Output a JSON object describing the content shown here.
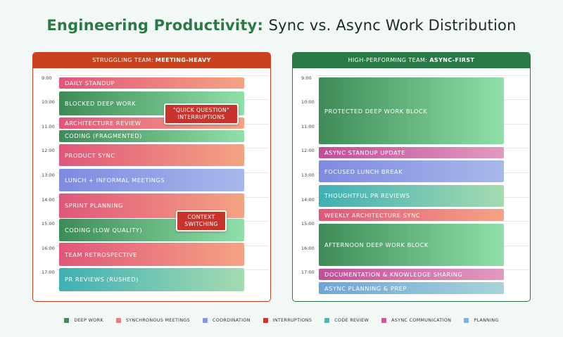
{
  "title": {
    "part1": "Engineering Productivity:",
    "part2": "Sync vs. Async Work Distribution"
  },
  "hours": [
    "9:00",
    "10:00",
    "11:00",
    "12:00",
    "13:00",
    "14:00",
    "15:00",
    "16:00",
    "17:00"
  ],
  "left_panel": {
    "header_prefix": "STRUGGLING TEAM:",
    "header_bold": "MEETING-HEAVY",
    "blocks": [
      {
        "label": "DAILY STANDUP",
        "category": "sync",
        "start": 9.1,
        "end": 9.55
      },
      {
        "label": "BLOCKED DEEP WORK",
        "category": "deep",
        "start": 9.67,
        "end": 10.67
      },
      {
        "label": "ARCHITECTURE REVIEW",
        "category": "sync",
        "start": 10.74,
        "end": 11.2
      },
      {
        "label": "CODING (FRAGMENTED)",
        "category": "deep",
        "start": 11.27,
        "end": 11.75
      },
      {
        "label": "PRODUCT SYNC",
        "category": "sync",
        "start": 11.85,
        "end": 12.75
      },
      {
        "label": "LUNCH + INFORMAL MEETINGS",
        "category": "coord",
        "start": 12.85,
        "end": 13.77
      },
      {
        "label": "SPRINT PLANNING",
        "category": "sync",
        "start": 13.87,
        "end": 14.87
      },
      {
        "label": "CODING (LOW QUALITY)",
        "category": "deep",
        "start": 14.9,
        "end": 15.85
      },
      {
        "label": "TEAM RETROSPECTIVE",
        "category": "sync",
        "start": 15.9,
        "end": 16.85
      },
      {
        "label": "PR REVIEWS (RUSHED)",
        "category": "review",
        "start": 16.93,
        "end": 17.88
      }
    ],
    "callouts": [
      {
        "line1": "\"QUICK QUESTION\"",
        "line2": "INTERRUPTIONS"
      },
      {
        "line1": "CONTEXT",
        "line2": "SWITCHING"
      }
    ]
  },
  "right_panel": {
    "header_prefix": "HIGH-PERFORMING TEAM:",
    "header_bold": "ASYNC-FIRST",
    "blocks": [
      {
        "label": "PROTECTED DEEP WORK BLOCK",
        "category": "deep",
        "start": 9.1,
        "end": 11.85
      },
      {
        "label": "ASYNC STANDUP UPDATE",
        "category": "async",
        "start": 11.95,
        "end": 12.42
      },
      {
        "label": "FOCUSED LUNCH BREAK",
        "category": "coord",
        "start": 12.52,
        "end": 13.42
      },
      {
        "label": "THOUGHTFUL PR REVIEWS",
        "category": "review",
        "start": 13.52,
        "end": 14.42
      },
      {
        "label": "WEEKLY ARCHITECTURE SYNC",
        "category": "sync",
        "start": 14.52,
        "end": 15.0
      },
      {
        "label": "AFTERNOON DEEP WORK BLOCK",
        "category": "deep",
        "start": 15.1,
        "end": 16.85
      },
      {
        "label": "DOCUMENTATION & KNOWLEDGE SHARING",
        "category": "async",
        "start": 16.95,
        "end": 17.42
      },
      {
        "label": "ASYNC PLANNING & PREP",
        "category": "plan",
        "start": 17.52,
        "end": 18.0
      }
    ]
  },
  "legend": [
    {
      "label": "DEEP WORK",
      "color": "#3e8b57"
    },
    {
      "label": "SYNCHRONOUS MEETINGS",
      "color": "#ef7a7a"
    },
    {
      "label": "COORDINATION",
      "color": "#8c95e2"
    },
    {
      "label": "INTERRUPTIONS",
      "color": "#c8342c"
    },
    {
      "label": "CODE REVIEW",
      "color": "#4db5b0"
    },
    {
      "label": "ASYNC COMMUNICATION",
      "color": "#c858a0"
    },
    {
      "label": "PLANNING",
      "color": "#7db3dc"
    }
  ]
}
